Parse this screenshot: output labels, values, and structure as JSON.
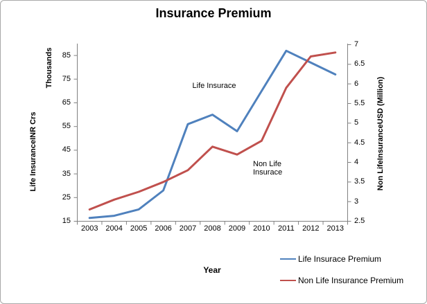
{
  "figure": {
    "title": "Insurance Premium"
  },
  "chart_data": {
    "type": "line",
    "title": "Insurance Premium",
    "categories": [
      "2003",
      "2004",
      "2005",
      "2006",
      "2007",
      "2008",
      "2009",
      "2010",
      "2011",
      "2012",
      "2013"
    ],
    "series": [
      {
        "name": "Life Insurace Premium",
        "axis": "left",
        "color": "#4F81BD",
        "values": [
          16.4,
          17.3,
          20,
          28,
          56,
          60,
          53,
          70,
          87,
          82,
          77
        ]
      },
      {
        "name": "Non Life Insurance Premium",
        "axis": "right",
        "color": "#C0504D",
        "values": [
          2.8,
          3.05,
          3.25,
          3.5,
          3.8,
          4.4,
          4.2,
          4.55,
          5.9,
          6.7,
          6.8
        ]
      }
    ],
    "left_axis": {
      "label": "Life InsuranceINR Crs",
      "secondary_label": "Thousands",
      "min": 15,
      "max": 90,
      "ticks": [
        15,
        25,
        35,
        45,
        55,
        65,
        75,
        85
      ]
    },
    "right_axis": {
      "label": "Non LifeInsuranceUSD (Million)",
      "min": 2.5,
      "max": 7,
      "ticks": [
        2.5,
        3,
        3.5,
        4,
        4.5,
        5,
        5.5,
        6,
        6.5,
        7
      ]
    },
    "x_axis": {
      "label": "Year"
    },
    "annotations": [
      {
        "id": "life",
        "lines": [
          "Life Insurace"
        ]
      },
      {
        "id": "nonlife",
        "lines": [
          "Non Life",
          "Insurace"
        ]
      }
    ],
    "legend": [
      {
        "label": "Life Insurace Premium",
        "color": "#4F81BD"
      },
      {
        "label": "Non Life Insurance Premium",
        "color": "#C0504D"
      }
    ],
    "grid": false,
    "legend_position": "bottom-right",
    "axis_color": "#808080"
  }
}
